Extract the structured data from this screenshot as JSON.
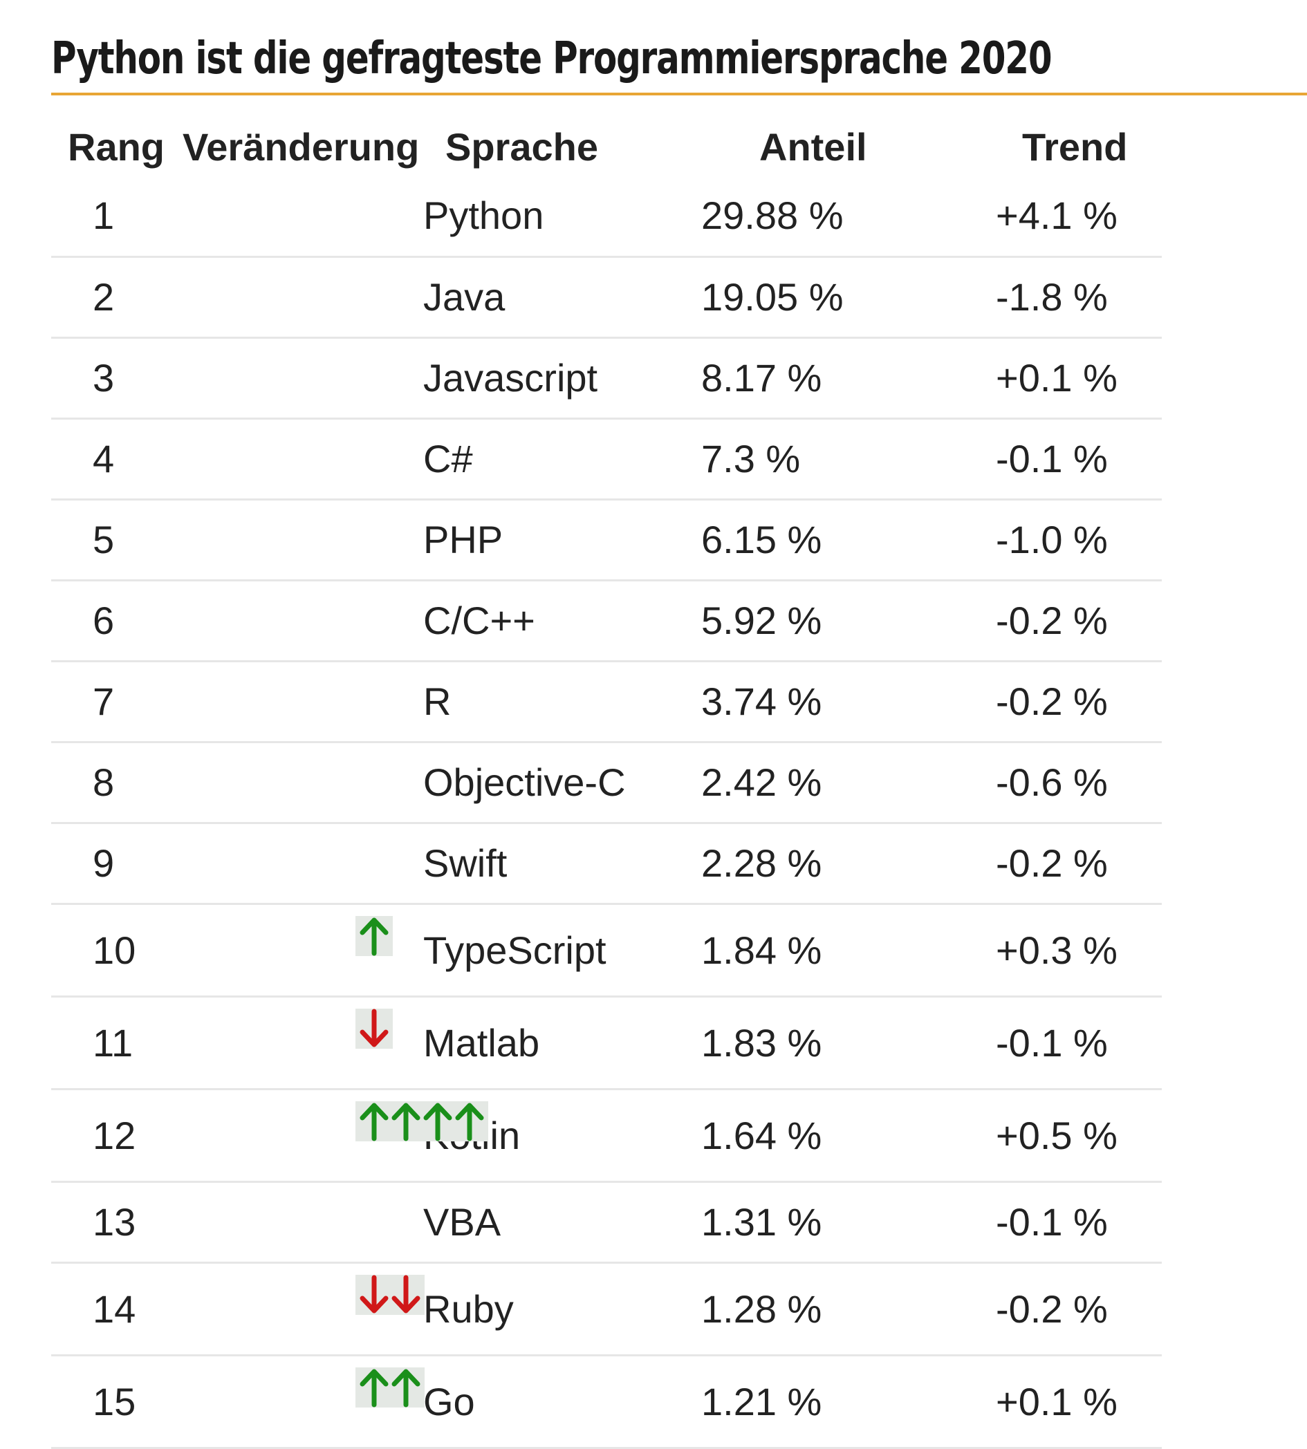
{
  "title": "Python ist die gefragteste Programmiersprache 2020",
  "colors": {
    "title_rule": "#e8a535",
    "arrow_up": "#1a8f1a",
    "arrow_down": "#d01818",
    "row_divider": "#e6e6e6"
  },
  "table": {
    "headers": {
      "rank": "Rang",
      "change": "Veränderung",
      "language": "Sprache",
      "share": "Anteil",
      "trend": "Trend"
    },
    "rows": [
      {
        "rank": "1",
        "change": {
          "direction": "none",
          "count": 0
        },
        "language": "Python",
        "share": "29.88 %",
        "trend": "+4.1 %"
      },
      {
        "rank": "2",
        "change": {
          "direction": "none",
          "count": 0
        },
        "language": "Java",
        "share": "19.05 %",
        "trend": "-1.8 %"
      },
      {
        "rank": "3",
        "change": {
          "direction": "none",
          "count": 0
        },
        "language": "Javascript",
        "share": "8.17 %",
        "trend": "+0.1 %"
      },
      {
        "rank": "4",
        "change": {
          "direction": "none",
          "count": 0
        },
        "language": "C#",
        "share": "7.3 %",
        "trend": "-0.1 %"
      },
      {
        "rank": "5",
        "change": {
          "direction": "none",
          "count": 0
        },
        "language": "PHP",
        "share": "6.15 %",
        "trend": "-1.0 %"
      },
      {
        "rank": "6",
        "change": {
          "direction": "none",
          "count": 0
        },
        "language": "C/C++",
        "share": "5.92 %",
        "trend": "-0.2 %"
      },
      {
        "rank": "7",
        "change": {
          "direction": "none",
          "count": 0
        },
        "language": "R",
        "share": "3.74 %",
        "trend": "-0.2 %"
      },
      {
        "rank": "8",
        "change": {
          "direction": "none",
          "count": 0
        },
        "language": "Objective-C",
        "share": "2.42 %",
        "trend": "-0.6 %"
      },
      {
        "rank": "9",
        "change": {
          "direction": "none",
          "count": 0
        },
        "language": "Swift",
        "share": "2.28 %",
        "trend": "-0.2 %"
      },
      {
        "rank": "10",
        "change": {
          "direction": "up",
          "count": 1
        },
        "language": "TypeScript",
        "share": "1.84 %",
        "trend": "+0.3 %"
      },
      {
        "rank": "11",
        "change": {
          "direction": "down",
          "count": 1
        },
        "language": "Matlab",
        "share": "1.83 %",
        "trend": "-0.1 %"
      },
      {
        "rank": "12",
        "change": {
          "direction": "up",
          "count": 4
        },
        "language": "Kotlin",
        "share": "1.64 %",
        "trend": "+0.5 %"
      },
      {
        "rank": "13",
        "change": {
          "direction": "none",
          "count": 0
        },
        "language": "VBA",
        "share": "1.31 %",
        "trend": "-0.1 %"
      },
      {
        "rank": "14",
        "change": {
          "direction": "down",
          "count": 2
        },
        "language": "Ruby",
        "share": "1.28 %",
        "trend": "-0.2 %"
      },
      {
        "rank": "15",
        "change": {
          "direction": "up",
          "count": 2
        },
        "language": "Go",
        "share": "1.21 %",
        "trend": "+0.1 %"
      }
    ]
  }
}
